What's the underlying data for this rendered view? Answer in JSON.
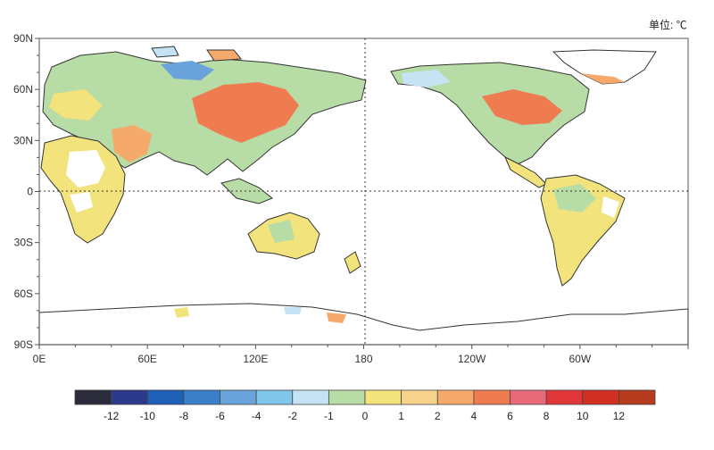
{
  "map": {
    "units_label": "单位: ℃",
    "lat_labels": [
      "90N",
      "60N",
      "30N",
      "0",
      "30S",
      "60S",
      "90S"
    ],
    "lon_labels": [
      "0E",
      "60E",
      "120E",
      "180",
      "120W",
      "60W"
    ]
  },
  "colorbar": {
    "labels": [
      "-12",
      "-10",
      "-8",
      "-6",
      "-4",
      "-2",
      "-1",
      "0",
      "1",
      "2",
      "4",
      "6",
      "8",
      "10",
      "12"
    ],
    "colors": [
      "#2b2b3b",
      "#2c3a8c",
      "#1f5fb5",
      "#3b7fc9",
      "#6aa3db",
      "#7fc6ea",
      "#c5e3f2",
      "#b8dca6",
      "#f3e37c",
      "#f7d38c",
      "#f5a96b",
      "#ef7c50",
      "#e86a7a",
      "#e0363a",
      "#d22f24",
      "#b63a1c"
    ]
  }
}
